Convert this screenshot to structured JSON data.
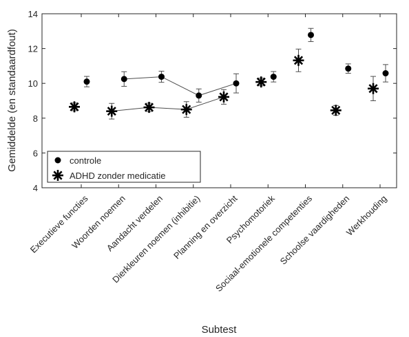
{
  "chart_data": {
    "type": "scatter",
    "xlabel": "Subtest",
    "ylabel": "Gemiddelde (en standaardfout)",
    "ylim": [
      4,
      14
    ],
    "yticks": [
      4,
      6,
      8,
      10,
      12,
      14
    ],
    "grid": false,
    "legend_position": "bottom-left",
    "categories": [
      "Executieve functies",
      "Woorden noemen",
      "Aandacht verdelen",
      "Dierkleuren noemen (inhibitie)",
      "Planning en overzicht",
      "Psychomotoriek",
      "Sociaal-emotionele competenties",
      "Schoolse vaardigheden",
      "Werkhouding"
    ],
    "series": [
      {
        "name": "controle",
        "marker": "dot",
        "values": [
          10.1,
          10.25,
          10.38,
          9.3,
          10.0,
          10.38,
          12.78,
          10.85,
          10.58
        ],
        "errors": [
          0.3,
          0.42,
          0.32,
          0.38,
          0.55,
          0.3,
          0.38,
          0.27,
          0.5
        ]
      },
      {
        "name": "ADHD zonder medicatie",
        "marker": "star",
        "values": [
          8.65,
          8.4,
          8.62,
          8.5,
          9.22,
          10.08,
          11.32,
          8.45,
          9.7
        ],
        "errors": [
          0.22,
          0.45,
          0.24,
          0.45,
          0.42,
          0.22,
          0.65,
          0.28,
          0.7
        ]
      }
    ],
    "connected_ranges": [
      [
        1,
        4
      ]
    ],
    "colors": {
      "marker": "#000000",
      "line": "#4d4d4d",
      "axis": "#262626",
      "text": "#262626"
    }
  }
}
